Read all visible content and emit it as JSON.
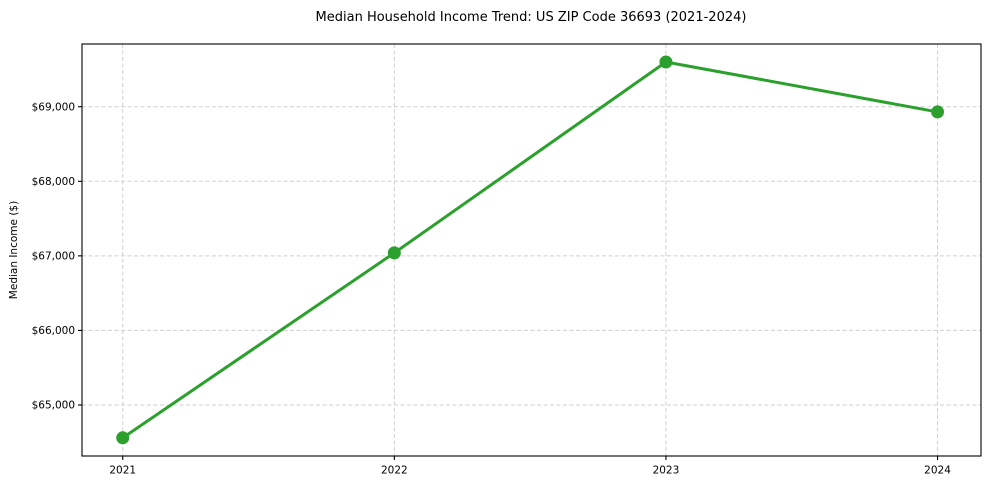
{
  "page": {
    "background": "#ffffff"
  },
  "chart_data": {
    "type": "line",
    "title": "Median Household Income Trend: US ZIP Code 36693 (2021-2024)",
    "xlabel": "",
    "ylabel": "Median Income ($)",
    "x": [
      2021,
      2022,
      2023,
      2024
    ],
    "x_tick_labels": [
      "2021",
      "2022",
      "2023",
      "2024"
    ],
    "series": [
      {
        "name": "Median Household Income",
        "values": [
          64560,
          67040,
          69600,
          68930
        ],
        "color": "#2ca02c",
        "marker": "circle"
      }
    ],
    "y_ticks": [
      65000,
      66000,
      67000,
      68000,
      69000
    ],
    "y_tick_labels": [
      "$65,000",
      "$66,000",
      "$67,000",
      "$68,000",
      "$69,000"
    ],
    "xlim": [
      2020.85,
      2024.16
    ],
    "ylim": [
      64316,
      69841
    ],
    "grid": true,
    "grid_style": "dashed",
    "legend_position": "none",
    "colors": {
      "line": "#2ca02c",
      "grid": "#cfcfcf",
      "spine": "#000000",
      "text": "#000000",
      "background": "#ffffff"
    }
  }
}
